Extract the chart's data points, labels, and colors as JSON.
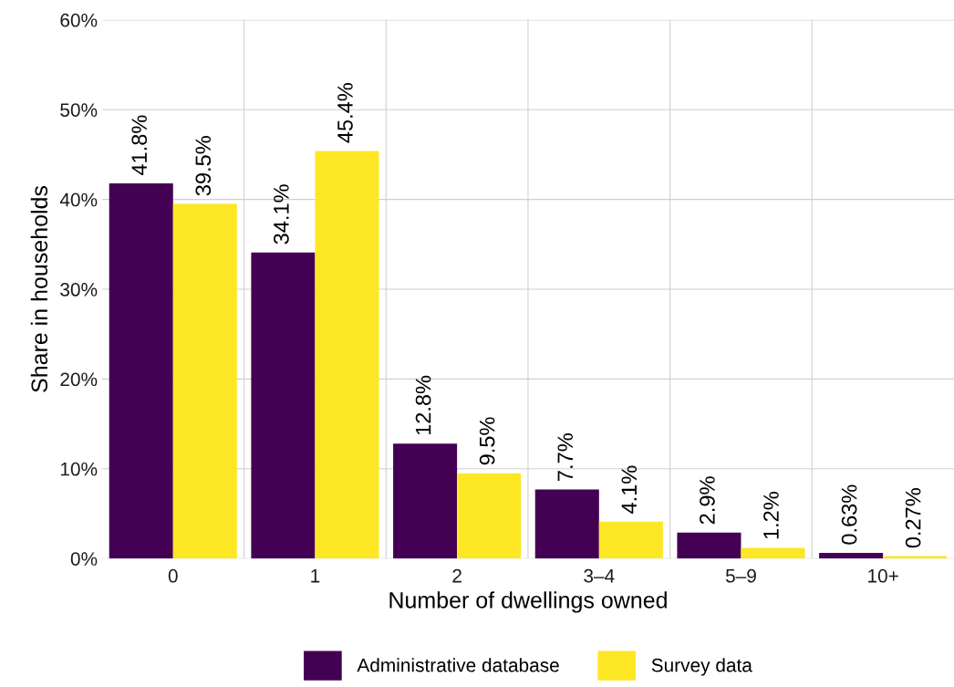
{
  "chart_data": {
    "type": "bar",
    "xlabel": "Number of dwellings owned",
    "ylabel": "Share in households",
    "categories": [
      "0",
      "1",
      "2",
      "3–4",
      "5–9",
      "10+"
    ],
    "series": [
      {
        "name": "Administrative database",
        "color": "#440154",
        "values": [
          41.8,
          34.1,
          12.8,
          7.7,
          2.9,
          0.63
        ],
        "value_labels": [
          "41.8%",
          "34.1%",
          "12.8%",
          "7.7%",
          "2.9%",
          "0.63%"
        ]
      },
      {
        "name": "Survey data",
        "color": "#fde725",
        "values": [
          39.5,
          45.4,
          9.5,
          4.1,
          1.2,
          0.27
        ],
        "value_labels": [
          "39.5%",
          "45.4%",
          "9.5%",
          "4.1%",
          "1.2%",
          "0.27%"
        ]
      }
    ],
    "ylim": [
      0,
      60
    ],
    "yticks": [
      {
        "value": 0,
        "label": "0%"
      },
      {
        "value": 10,
        "label": "10%"
      },
      {
        "value": 20,
        "label": "20%"
      },
      {
        "value": 30,
        "label": "30%"
      },
      {
        "value": 40,
        "label": "40%"
      },
      {
        "value": 50,
        "label": "50%"
      },
      {
        "value": 60,
        "label": "60%"
      }
    ],
    "grid": true,
    "legend": "bottom"
  }
}
